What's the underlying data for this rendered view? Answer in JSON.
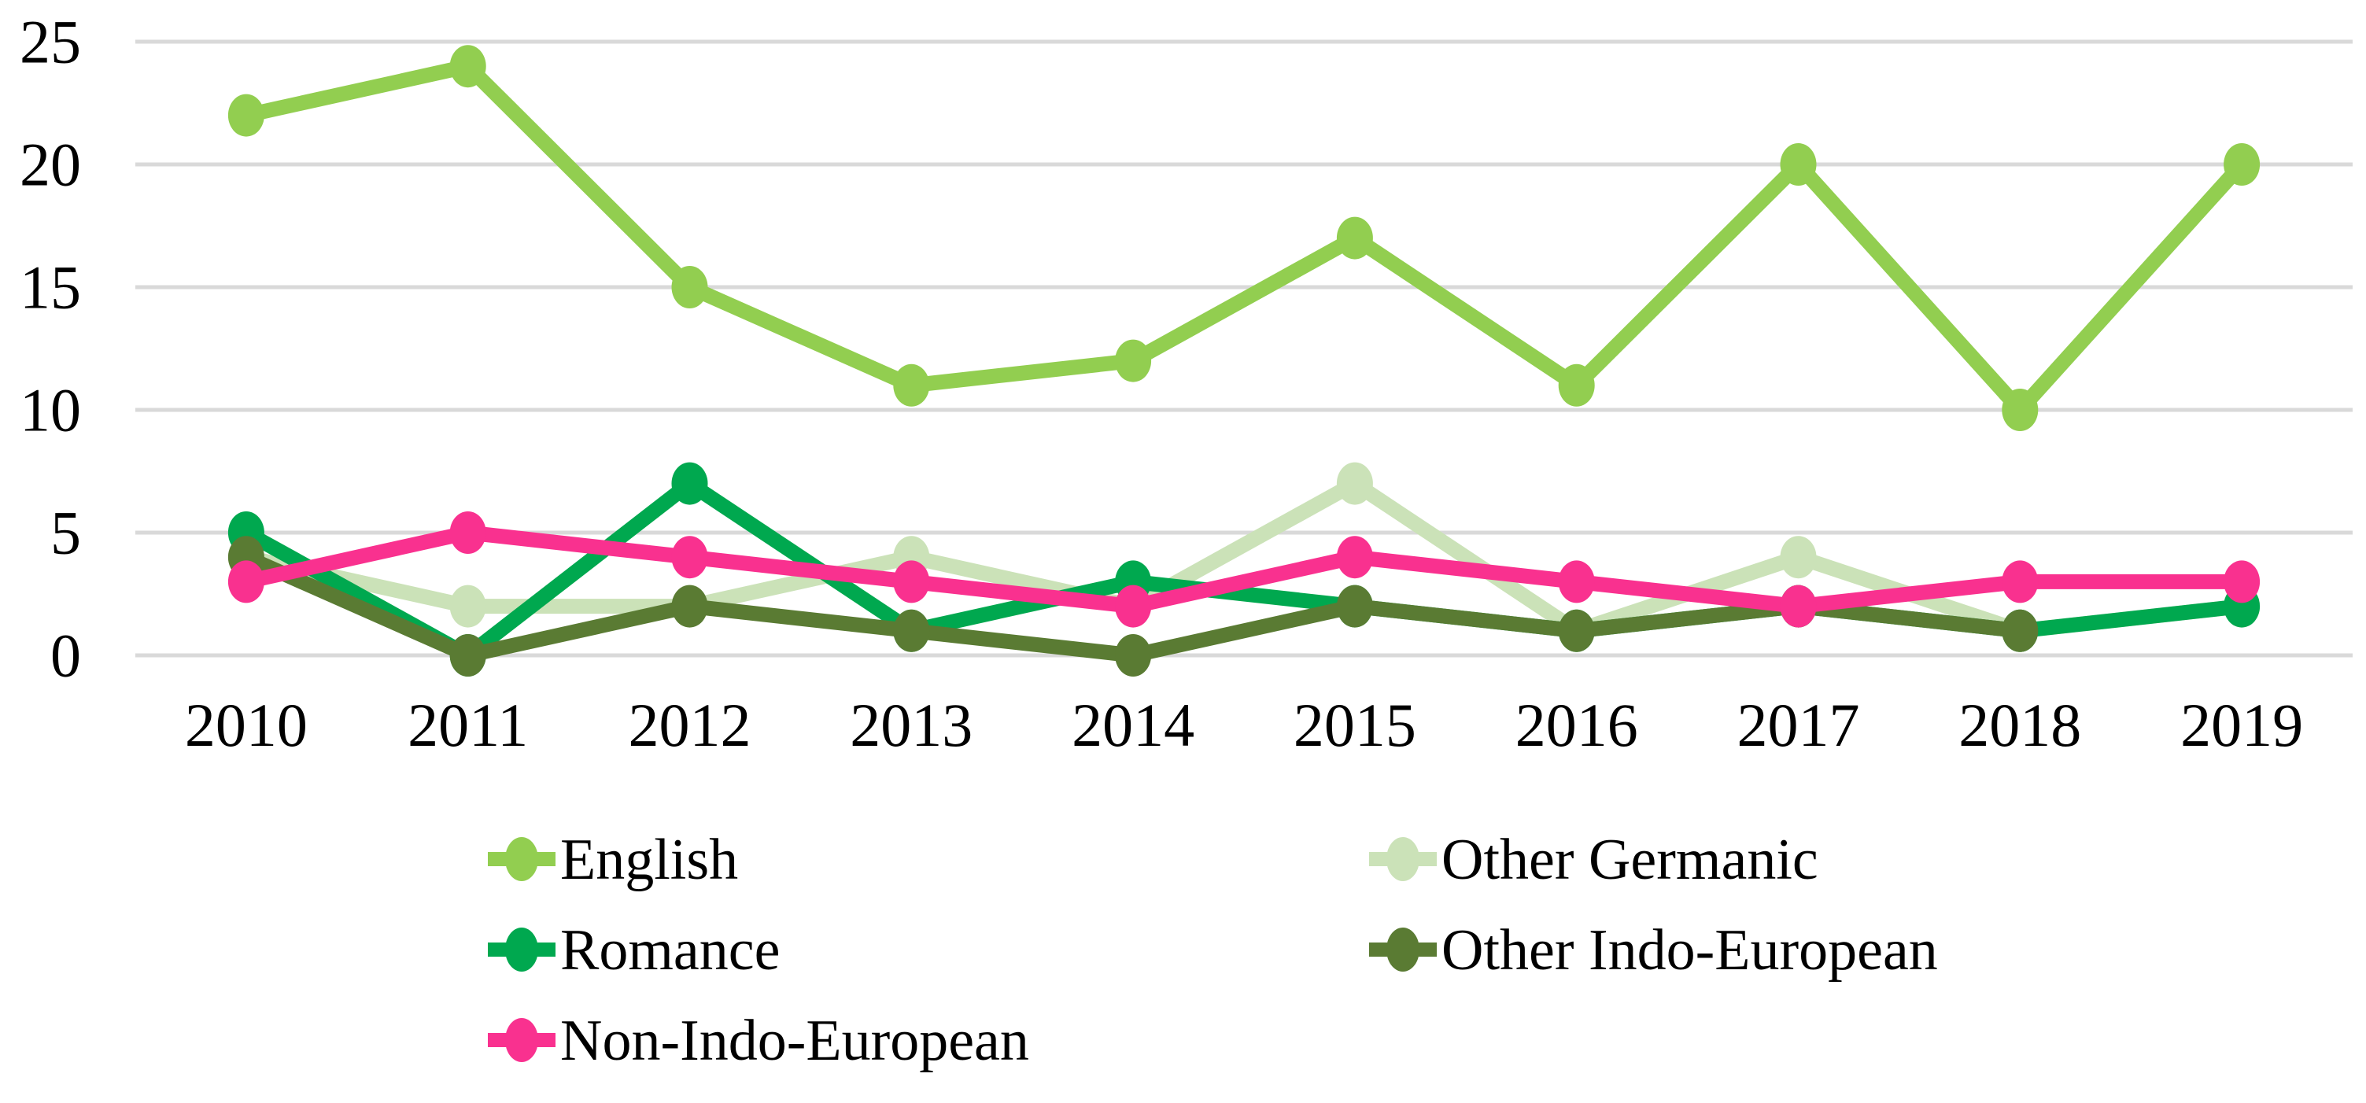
{
  "chart_data": {
    "type": "line",
    "title": "",
    "xlabel": "",
    "ylabel": "",
    "categories": [
      "2010",
      "2011",
      "2012",
      "2013",
      "2014",
      "2015",
      "2016",
      "2017",
      "2018",
      "2019"
    ],
    "series": [
      {
        "name": "English",
        "color": "#92CE50",
        "values": [
          22,
          24,
          15,
          11,
          12,
          17,
          11,
          20,
          10,
          20
        ]
      },
      {
        "name": "Other Germanic",
        "color": "#CBE2B8",
        "values": [
          4,
          2,
          2,
          4,
          2,
          7,
          1,
          4,
          1,
          2
        ]
      },
      {
        "name": "Romance",
        "color": "#00A84F",
        "values": [
          5,
          0,
          7,
          1,
          3,
          2,
          1,
          2,
          1,
          2
        ]
      },
      {
        "name": "Other Indo-European",
        "color": "#5A7B33",
        "values": [
          4,
          0,
          2,
          1,
          0,
          2,
          1,
          2,
          1,
          null
        ]
      },
      {
        "name": "Non-Indo-European",
        "color": "#F9318F",
        "values": [
          3,
          5,
          4,
          3,
          2,
          4,
          3,
          2,
          3,
          3
        ]
      }
    ],
    "ylim": [
      0,
      25
    ],
    "yticks": [
      0,
      5,
      10,
      15,
      20,
      25
    ],
    "grid": "horizontal",
    "gridline_color": "#D9D9D9",
    "background_color": "#FFFFFF",
    "text_color": "#000000",
    "legend_position": "bottom-two-columns"
  }
}
